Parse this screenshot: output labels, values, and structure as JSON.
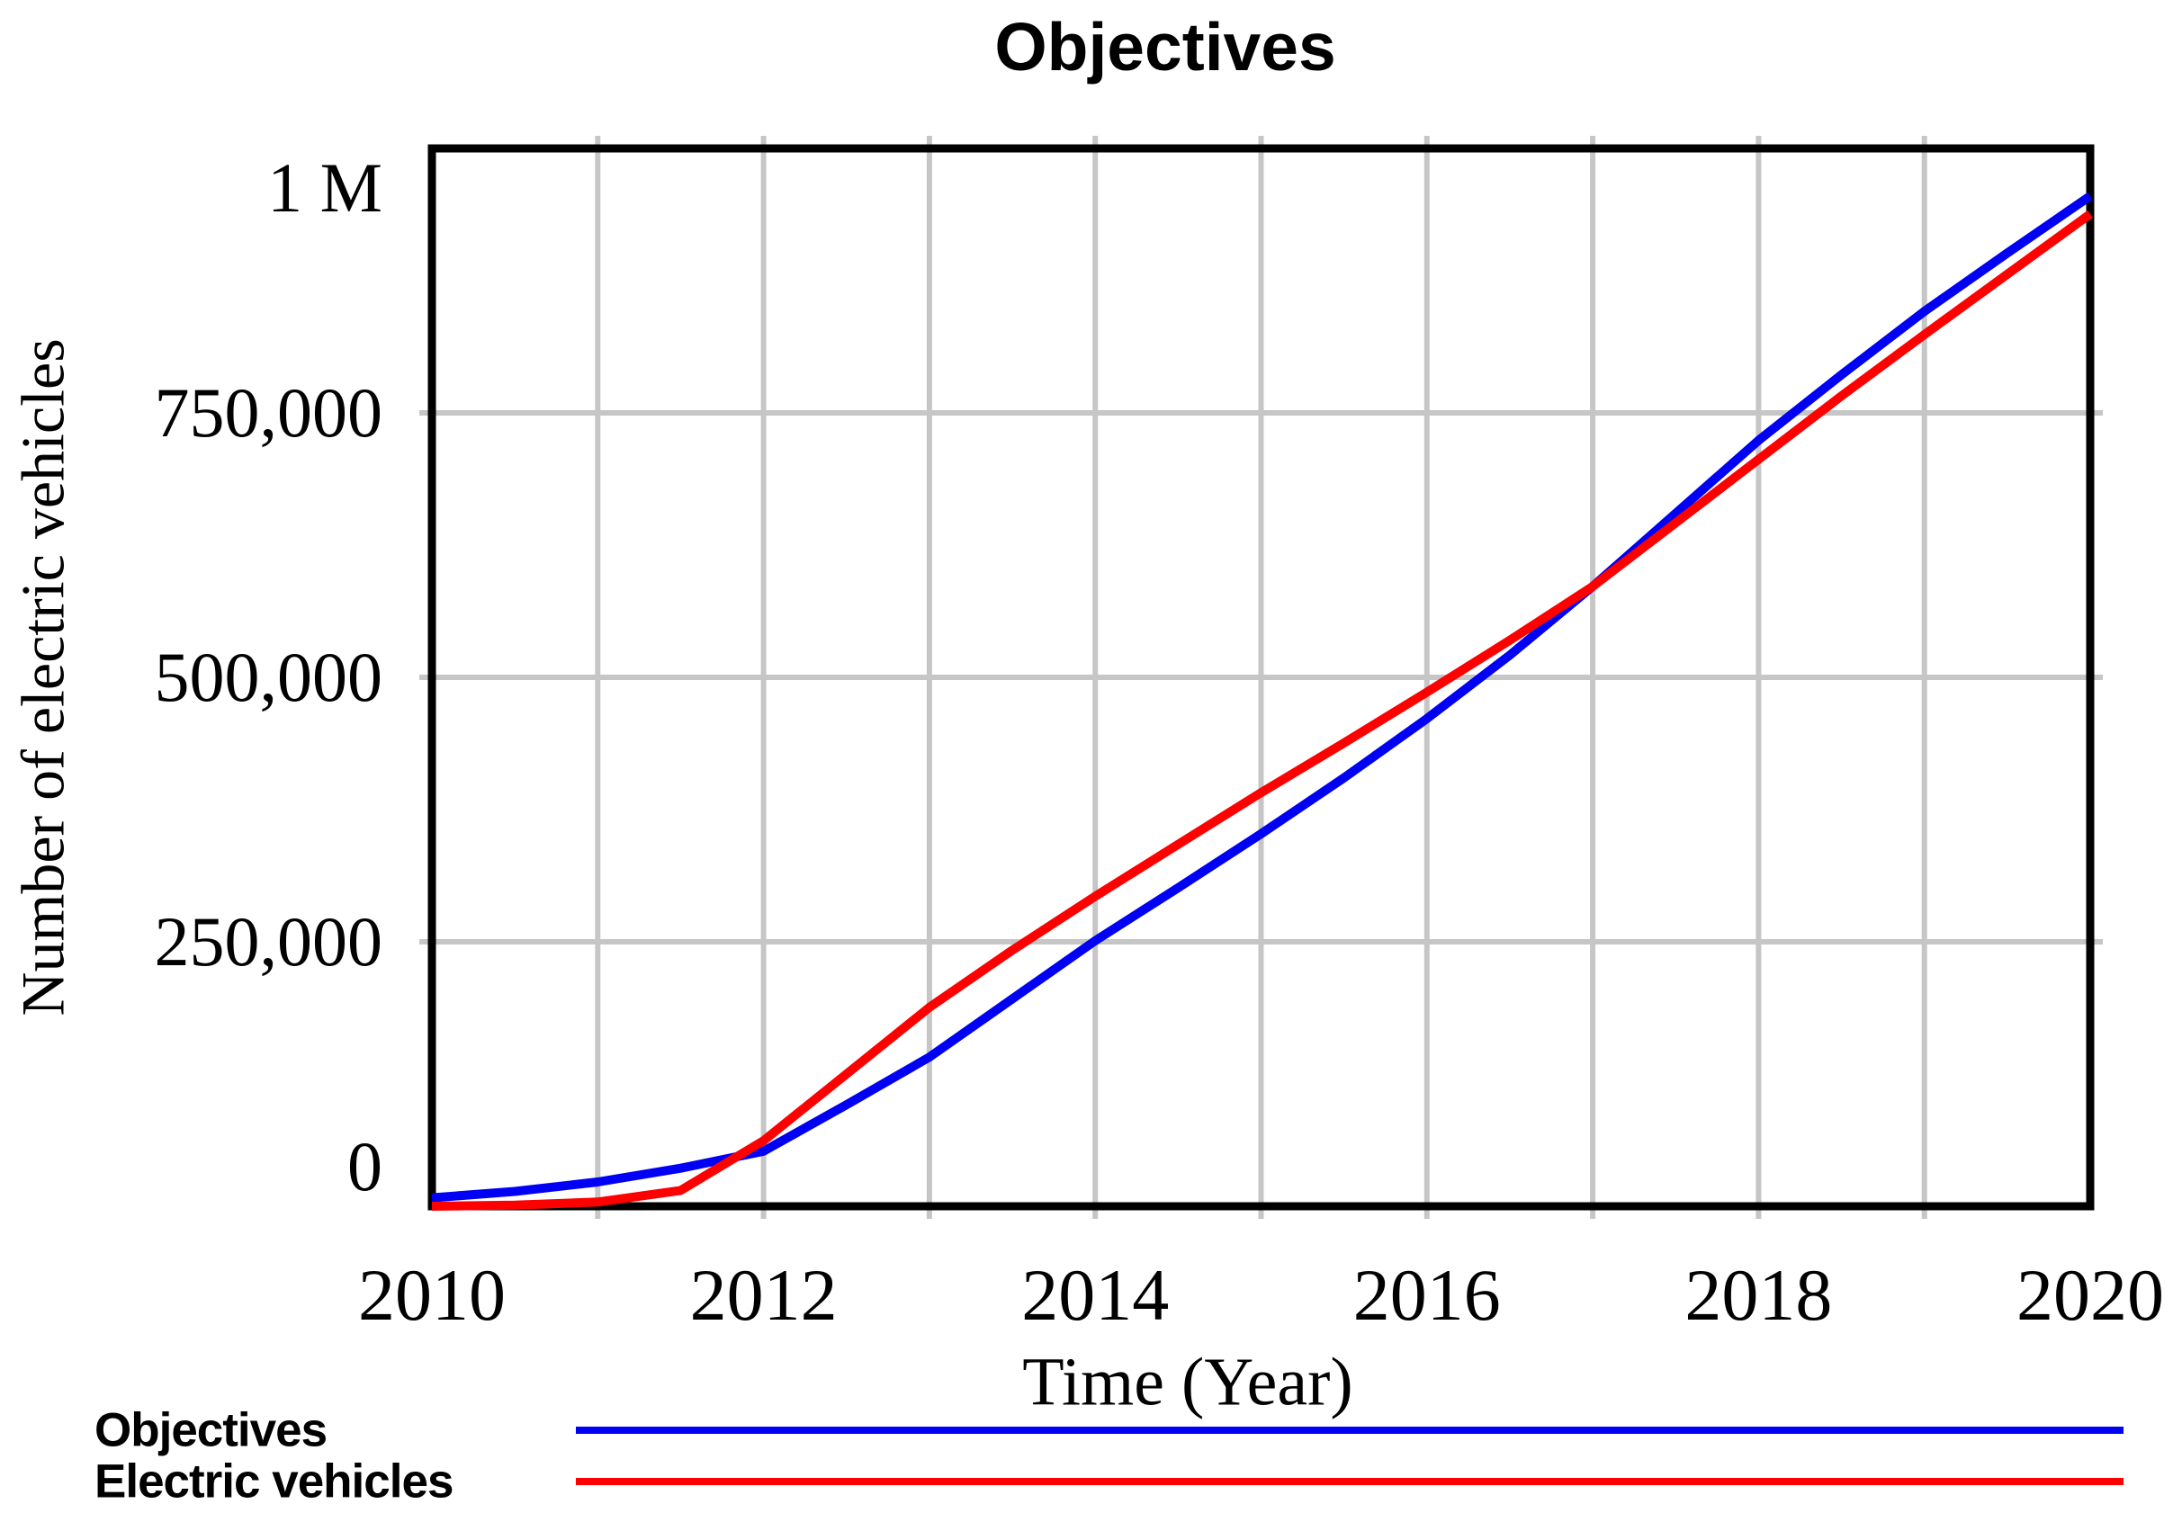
{
  "title": "Objectives",
  "axes": {
    "y_label": "Number of electric vehicles",
    "x_label": "Time (Year)",
    "y_ticks": [
      {
        "value": 1000000,
        "label": "1 M"
      },
      {
        "value": 750000,
        "label": "750,000"
      },
      {
        "value": 500000,
        "label": "500,000"
      },
      {
        "value": 250000,
        "label": "250,000"
      },
      {
        "value": 0,
        "label": "0"
      }
    ],
    "x_ticks": [
      {
        "value": 2010,
        "label": "2010"
      },
      {
        "value": 2012,
        "label": "2012"
      },
      {
        "value": 2014,
        "label": "2014"
      },
      {
        "value": 2016,
        "label": "2016"
      },
      {
        "value": 2018,
        "label": "2018"
      },
      {
        "value": 2020,
        "label": "2020"
      }
    ]
  },
  "legend": [
    {
      "label": "Objectives",
      "color": "#0000f5"
    },
    {
      "label": "Electric vehicles",
      "color": "#ff0000"
    }
  ],
  "colors": {
    "frame": "#000000",
    "grid": "#c6c6c6",
    "background": "#ffffff",
    "text": "#000000"
  },
  "chart_data": {
    "type": "line",
    "title": "Objectives",
    "xlabel": "Time (Year)",
    "ylabel": "Number of electric vehicles",
    "xlim": [
      2010,
      2020
    ],
    "ylim": [
      0,
      1000000
    ],
    "x_grid_interval": 1,
    "y_grid_interval": 250000,
    "grid": true,
    "legend_position": "bottom-left",
    "x": [
      2010,
      2010.5,
      2011,
      2011.5,
      2012,
      2012.5,
      2013,
      2013.5,
      2014,
      2014.5,
      2015,
      2015.5,
      2016,
      2016.5,
      2017,
      2017.5,
      2018,
      2018.5,
      2019,
      2019.5,
      2020
    ],
    "series": [
      {
        "name": "Objectives",
        "color": "#0000f5",
        "values": [
          8000,
          14000,
          23000,
          36000,
          52000,
          96000,
          141000,
          196000,
          251000,
          301000,
          352000,
          405000,
          461000,
          521000,
          586000,
          655000,
          724000,
          786000,
          846000,
          901000,
          955000
        ]
      },
      {
        "name": "Electric vehicles",
        "color": "#ff0000",
        "values": [
          0,
          1000,
          4000,
          15000,
          62000,
          125000,
          188000,
          242000,
          293000,
          342000,
          391000,
          438000,
          486000,
          535000,
          586000,
          646000,
          706000,
          766000,
          824000,
          881000,
          938000
        ]
      }
    ]
  }
}
